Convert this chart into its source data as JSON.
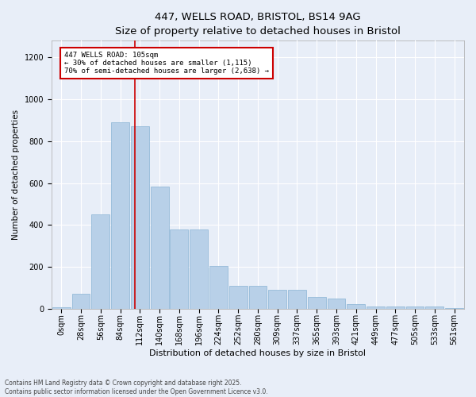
{
  "title_line1": "447, WELLS ROAD, BRISTOL, BS14 9AG",
  "title_line2": "Size of property relative to detached houses in Bristol",
  "xlabel": "Distribution of detached houses by size in Bristol",
  "ylabel": "Number of detached properties",
  "footnote": "Contains HM Land Registry data © Crown copyright and database right 2025.\nContains public sector information licensed under the Open Government Licence v3.0.",
  "bin_labels": [
    "0sqm",
    "28sqm",
    "56sqm",
    "84sqm",
    "112sqm",
    "140sqm",
    "168sqm",
    "196sqm",
    "224sqm",
    "252sqm",
    "280sqm",
    "309sqm",
    "337sqm",
    "365sqm",
    "393sqm",
    "421sqm",
    "449sqm",
    "477sqm",
    "505sqm",
    "533sqm",
    "561sqm"
  ],
  "bar_heights": [
    5,
    70,
    450,
    890,
    870,
    585,
    380,
    380,
    205,
    110,
    110,
    90,
    90,
    55,
    50,
    22,
    10,
    10,
    12,
    10,
    2
  ],
  "bar_color": "#b8d0e8",
  "bar_edgecolor": "#8ab4d4",
  "ylim": [
    0,
    1280
  ],
  "yticks": [
    0,
    200,
    400,
    600,
    800,
    1000,
    1200
  ],
  "vline_x": 3.75,
  "vline_color": "#cc0000",
  "annotation_text": "447 WELLS ROAD: 105sqm\n← 30% of detached houses are smaller (1,115)\n70% of semi-detached houses are larger (2,638) →",
  "bg_color": "#e8eef8",
  "plot_bg_color": "#e8eef8",
  "title_fontsize": 9.5,
  "subtitle_fontsize": 8,
  "xlabel_fontsize": 8,
  "ylabel_fontsize": 7.5,
  "tick_fontsize": 7,
  "footnote_fontsize": 5.5
}
